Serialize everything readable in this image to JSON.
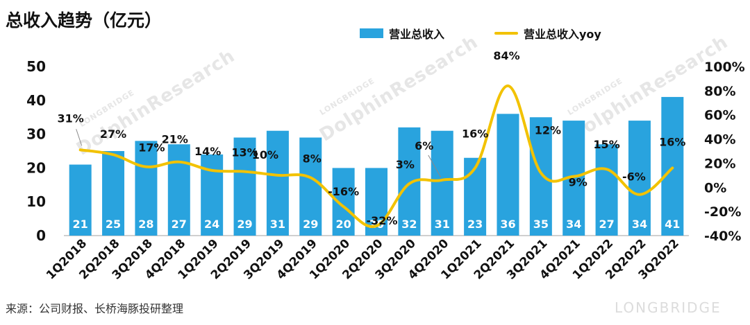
{
  "title": "总收入趋势（亿元）",
  "source": "来源：公司财报、长桥海豚投研整理",
  "watermark": {
    "main": "DolphinResearch",
    "sub": "LONGBRIDGE",
    "brand": "LONGBRIDGE"
  },
  "chart_data": {
    "type": "bar",
    "categories": [
      "1Q2018",
      "2Q2018",
      "3Q2018",
      "4Q2018",
      "1Q2019",
      "2Q2019",
      "3Q2019",
      "4Q2019",
      "1Q2020",
      "2Q2020",
      "3Q2020",
      "4Q2020",
      "1Q2021",
      "2Q2021",
      "3Q2021",
      "4Q2021",
      "1Q2022",
      "2Q2022",
      "3Q2022"
    ],
    "series": [
      {
        "name": "营业总收入",
        "type": "bar",
        "axis": "left",
        "color": "#29a3de",
        "values": [
          21,
          25,
          28,
          27,
          24,
          29,
          31,
          29,
          20,
          20,
          32,
          31,
          23,
          36,
          35,
          34,
          27,
          34,
          41
        ]
      },
      {
        "name": "营业总收入yoy",
        "type": "line",
        "axis": "right",
        "color": "#f2c200",
        "values": [
          31,
          27,
          17,
          21,
          14,
          13,
          10,
          8,
          -16,
          -32,
          3,
          6,
          16,
          84,
          12,
          9,
          15,
          -6,
          16
        ]
      }
    ],
    "yoy_labels": [
      "31%",
      "27%",
      "17%",
      "21%",
      "14%",
      "13%",
      "10%",
      "8%",
      "-16%",
      "-32%",
      "3%",
      "6%",
      "16%",
      "84%",
      "12%",
      "9%",
      "15%",
      "-6%",
      "16%"
    ],
    "left_axis": {
      "ylim": [
        0,
        50
      ],
      "ticks": [
        0,
        10,
        20,
        30,
        40,
        50
      ]
    },
    "right_axis": {
      "ylim": [
        -40,
        100
      ],
      "ticks": [
        "-40%",
        "-20%",
        "0%",
        "20%",
        "40%",
        "60%",
        "80%",
        "100%"
      ]
    },
    "grid": false,
    "legend_position": "top-right"
  }
}
